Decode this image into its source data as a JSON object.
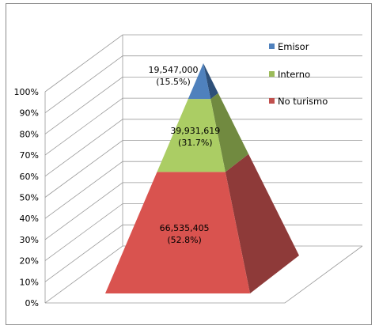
{
  "chart_data": {
    "type": "pyramid",
    "title": "",
    "xlabel": "",
    "ylabel": "",
    "ylim": [
      0,
      100
    ],
    "y_ticks": [
      "0%",
      "10%",
      "20%",
      "30%",
      "40%",
      "50%",
      "60%",
      "70%",
      "80%",
      "90%",
      "100%"
    ],
    "grid": true,
    "legend_position": "right",
    "series": [
      {
        "name": "No turismo",
        "value": 66535405,
        "label": "66,535,405",
        "percent_label": "(52.8%)",
        "color": "#d9534f",
        "side_color": "#8e3a39"
      },
      {
        "name": "Interno",
        "value": 39931619,
        "label": "39,931,619",
        "percent_label": "(31.7%)",
        "color": "#abcd64",
        "side_color": "#718a40"
      },
      {
        "name": "Emisor",
        "value": 19547000,
        "label": "19,547,000",
        "percent_label": "(15.5%)",
        "color": "#4f81bd",
        "side_color": "#2e5079"
      }
    ],
    "legend": [
      {
        "name": "Emisor",
        "color": "#4f81bd"
      },
      {
        "name": "Interno",
        "color": "#9bbb59"
      },
      {
        "name": "No turismo",
        "color": "#c0504d"
      }
    ]
  }
}
